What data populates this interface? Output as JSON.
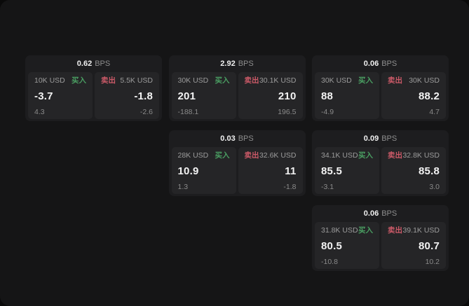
{
  "labels": {
    "bps": "BPS",
    "buy": "买入",
    "sell": "卖出"
  },
  "colors": {
    "window_bg": "#151516",
    "card_bg": "#1d1d1f",
    "subcard_bg": "#252527",
    "buy_green": "#4a9e62",
    "sell_red": "#cc5a68"
  },
  "cards": [
    {
      "bps": "0.62",
      "buy": {
        "size": "10K USD",
        "price": "-3.7",
        "delta": "4.3"
      },
      "sell": {
        "size": "5.5K USD",
        "price": "-1.8",
        "delta": "-2.6"
      }
    },
    {
      "bps": "2.92",
      "buy": {
        "size": "30K USD",
        "price": "201",
        "delta": "-188.1"
      },
      "sell": {
        "size": "30.1K USD",
        "price": "210",
        "delta": "196.5"
      }
    },
    {
      "bps": "0.06",
      "buy": {
        "size": "30K USD",
        "price": "88",
        "delta": "-4.9"
      },
      "sell": {
        "size": "30K USD",
        "price": "88.2",
        "delta": "4.7"
      }
    },
    {
      "bps": "0.03",
      "buy": {
        "size": "28K USD",
        "price": "10.9",
        "delta": "1.3"
      },
      "sell": {
        "size": "32.6K USD",
        "price": "11",
        "delta": "-1.8"
      }
    },
    {
      "bps": "0.09",
      "buy": {
        "size": "34.1K USD",
        "price": "85.5",
        "delta": "-3.1"
      },
      "sell": {
        "size": "32.8K USD",
        "price": "85.8",
        "delta": "3.0"
      }
    },
    {
      "bps": "0.06",
      "buy": {
        "size": "31.8K USD",
        "price": "80.5",
        "delta": "-10.8"
      },
      "sell": {
        "size": "39.1K USD",
        "price": "80.7",
        "delta": "10.2"
      }
    }
  ]
}
